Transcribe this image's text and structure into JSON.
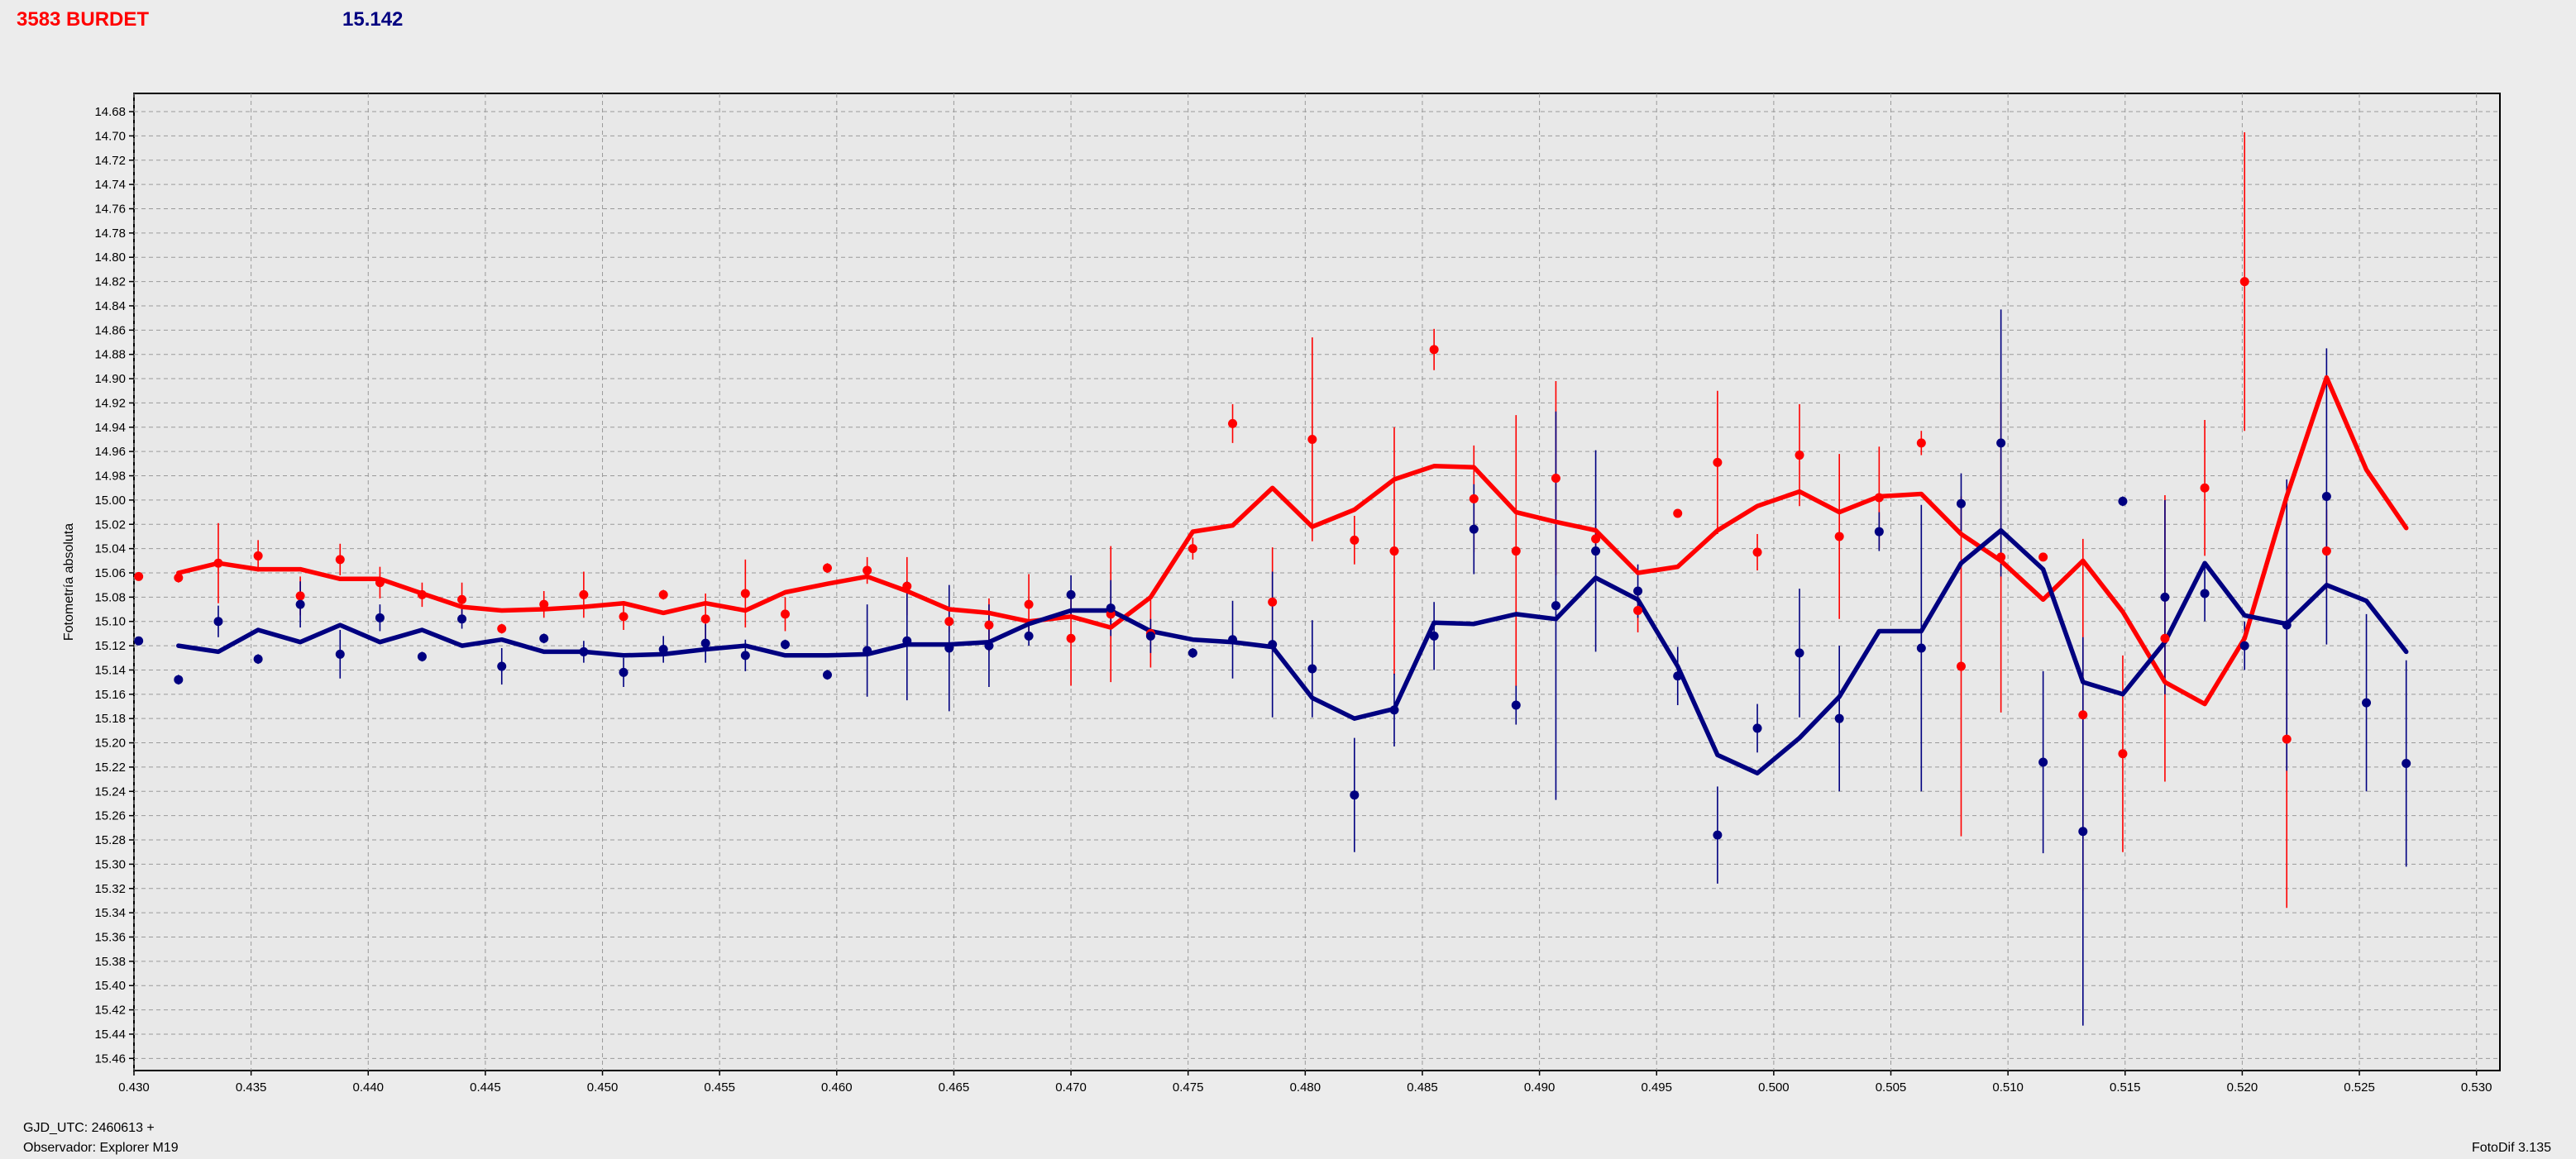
{
  "header": {
    "object_label": "3583 BURDET",
    "magnitude_label": "15.142"
  },
  "footer": {
    "gjd_label": "GJD_UTC: 2460613 +",
    "observer_label": "Observador: Explorer M19",
    "software_label": "FotoDif 3.135"
  },
  "colors": {
    "series_red": "#ff0000",
    "series_blue": "#000080",
    "plot_background": "#e8e8e8",
    "grid": "#9a9a9a"
  },
  "chart_data": {
    "type": "scatter",
    "title": "",
    "xlabel": "",
    "ylabel": "Fotometría absoluta",
    "xlim": [
      0.43,
      0.531
    ],
    "ylim": [
      14.665,
      15.47
    ],
    "y_inverted": true,
    "grid": true,
    "x_ticks": [
      "0.430",
      "0.435",
      "0.440",
      "0.445",
      "0.450",
      "0.455",
      "0.460",
      "0.465",
      "0.470",
      "0.475",
      "0.480",
      "0.485",
      "0.490",
      "0.495",
      "0.500",
      "0.505",
      "0.510",
      "0.515",
      "0.520",
      "0.525",
      "0.530"
    ],
    "y_ticks": [
      "14.68",
      "14.70",
      "14.72",
      "14.74",
      "14.76",
      "14.78",
      "14.80",
      "14.82",
      "14.84",
      "14.86",
      "14.88",
      "14.90",
      "14.92",
      "14.94",
      "14.96",
      "14.98",
      "15.00",
      "15.02",
      "15.04",
      "15.06",
      "15.08",
      "15.10",
      "15.12",
      "15.14",
      "15.16",
      "15.18",
      "15.20",
      "15.22",
      "15.24",
      "15.26",
      "15.28",
      "15.30",
      "15.32",
      "15.34",
      "15.36",
      "15.38",
      "15.40",
      "15.42",
      "15.44",
      "15.46"
    ],
    "series": [
      {
        "color": "#ff0000",
        "points": [
          [
            0.4302,
            15.063,
            0.0
          ],
          [
            0.4319,
            15.064,
            0.004
          ],
          [
            0.4336,
            15.052,
            0.033
          ],
          [
            0.4353,
            15.046,
            0.013
          ],
          [
            0.4371,
            15.079,
            0.016
          ],
          [
            0.4388,
            15.049,
            0.013
          ],
          [
            0.4405,
            15.068,
            0.013
          ],
          [
            0.4423,
            15.078,
            0.01
          ],
          [
            0.444,
            15.082,
            0.014
          ],
          [
            0.4457,
            15.106,
            0.004
          ],
          [
            0.4475,
            15.086,
            0.011
          ],
          [
            0.4492,
            15.078,
            0.019
          ],
          [
            0.4509,
            15.096,
            0.011
          ],
          [
            0.4526,
            15.078,
            0.004
          ],
          [
            0.4544,
            15.098,
            0.021
          ],
          [
            0.4561,
            15.077,
            0.028
          ],
          [
            0.4578,
            15.094,
            0.014
          ],
          [
            0.4596,
            15.056,
            0.004
          ],
          [
            0.4613,
            15.058,
            0.011
          ],
          [
            0.463,
            15.071,
            0.024
          ],
          [
            0.4648,
            15.1,
            0.009
          ],
          [
            0.4665,
            15.103,
            0.022
          ],
          [
            0.4682,
            15.086,
            0.025
          ],
          [
            0.47,
            15.114,
            0.039
          ],
          [
            0.4717,
            15.094,
            0.056
          ],
          [
            0.4734,
            15.11,
            0.028
          ],
          [
            0.4752,
            15.04,
            0.009
          ],
          [
            0.4769,
            14.937,
            0.016
          ],
          [
            0.4786,
            15.084,
            0.045
          ],
          [
            0.4803,
            14.95,
            0.084
          ],
          [
            0.4821,
            15.033,
            0.02
          ],
          [
            0.4838,
            15.042,
            0.102
          ],
          [
            0.4855,
            14.876,
            0.017
          ],
          [
            0.4872,
            14.999,
            0.044
          ],
          [
            0.489,
            15.042,
            0.112
          ],
          [
            0.4907,
            14.982,
            0.08
          ],
          [
            0.4924,
            15.032,
            0.01
          ],
          [
            0.4942,
            15.091,
            0.018
          ],
          [
            0.4959,
            15.011,
            0.0
          ],
          [
            0.4976,
            14.969,
            0.059
          ],
          [
            0.4993,
            15.043,
            0.015
          ],
          [
            0.5011,
            14.963,
            0.042
          ],
          [
            0.5028,
            15.03,
            0.068
          ],
          [
            0.5045,
            14.998,
            0.042
          ],
          [
            0.5063,
            14.953,
            0.01
          ],
          [
            0.508,
            15.137,
            0.14
          ],
          [
            0.5097,
            15.047,
            0.128
          ],
          [
            0.5115,
            15.047,
            0.0
          ],
          [
            0.5132,
            15.177,
            0.145
          ],
          [
            0.5149,
            15.209,
            0.081
          ],
          [
            0.5167,
            15.114,
            0.118
          ],
          [
            0.5184,
            14.99,
            0.056
          ],
          [
            0.5201,
            14.82,
            0.123
          ],
          [
            0.5219,
            15.197,
            0.139
          ],
          [
            0.5236,
            15.042,
            0.034
          ]
        ]
      },
      {
        "color": "#000080",
        "points": [
          [
            0.4302,
            15.116,
            0.0
          ],
          [
            0.4319,
            15.148,
            0.004
          ],
          [
            0.4336,
            15.1,
            0.013
          ],
          [
            0.4353,
            15.131,
            0.004
          ],
          [
            0.4371,
            15.086,
            0.019
          ],
          [
            0.4388,
            15.127,
            0.02
          ],
          [
            0.4405,
            15.097,
            0.011
          ],
          [
            0.4423,
            15.129,
            0.004
          ],
          [
            0.444,
            15.098,
            0.008
          ],
          [
            0.4457,
            15.137,
            0.015
          ],
          [
            0.4475,
            15.114,
            0.004
          ],
          [
            0.4492,
            15.125,
            0.009
          ],
          [
            0.4509,
            15.142,
            0.012
          ],
          [
            0.4526,
            15.123,
            0.011
          ],
          [
            0.4544,
            15.118,
            0.016
          ],
          [
            0.4561,
            15.128,
            0.013
          ],
          [
            0.4578,
            15.119,
            0.004
          ],
          [
            0.4596,
            15.144,
            0.004
          ],
          [
            0.4613,
            15.124,
            0.038
          ],
          [
            0.463,
            15.116,
            0.049
          ],
          [
            0.4648,
            15.122,
            0.052
          ],
          [
            0.4665,
            15.12,
            0.034
          ],
          [
            0.4682,
            15.112,
            0.008
          ],
          [
            0.47,
            15.078,
            0.016
          ],
          [
            0.4717,
            15.089,
            0.023
          ],
          [
            0.4734,
            15.112,
            0.014
          ],
          [
            0.4752,
            15.126,
            0.004
          ],
          [
            0.4769,
            15.115,
            0.032
          ],
          [
            0.4786,
            15.119,
            0.06
          ],
          [
            0.4803,
            15.139,
            0.04
          ],
          [
            0.4821,
            15.243,
            0.047
          ],
          [
            0.4838,
            15.173,
            0.03
          ],
          [
            0.4855,
            15.112,
            0.028
          ],
          [
            0.4872,
            15.024,
            0.037
          ],
          [
            0.489,
            15.169,
            0.016
          ],
          [
            0.4907,
            15.087,
            0.16
          ],
          [
            0.4924,
            15.042,
            0.083
          ],
          [
            0.4942,
            15.075,
            0.022
          ],
          [
            0.4959,
            15.145,
            0.024
          ],
          [
            0.4976,
            15.276,
            0.04
          ],
          [
            0.4993,
            15.188,
            0.02
          ],
          [
            0.5011,
            15.126,
            0.053
          ],
          [
            0.5028,
            15.18,
            0.06
          ],
          [
            0.5045,
            15.026,
            0.016
          ],
          [
            0.5063,
            15.122,
            0.118
          ],
          [
            0.508,
            15.003,
            0.025
          ],
          [
            0.5097,
            14.953,
            0.11
          ],
          [
            0.5115,
            15.216,
            0.075
          ],
          [
            0.5132,
            15.273,
            0.16
          ],
          [
            0.5149,
            15.001,
            0.004
          ],
          [
            0.5167,
            15.08,
            0.08
          ],
          [
            0.5184,
            15.077,
            0.023
          ],
          [
            0.5201,
            15.12,
            0.02
          ],
          [
            0.5219,
            15.103,
            0.12
          ],
          [
            0.5236,
            14.997,
            0.122
          ],
          [
            0.5253,
            15.167,
            0.073
          ],
          [
            0.527,
            15.217,
            0.085
          ]
        ]
      }
    ],
    "trend_lines": [
      {
        "color": "#ff0000",
        "points": [
          [
            0.4319,
            15.06
          ],
          [
            0.4336,
            15.052
          ],
          [
            0.4353,
            15.057
          ],
          [
            0.4371,
            15.057
          ],
          [
            0.4388,
            15.065
          ],
          [
            0.4405,
            15.065
          ],
          [
            0.4423,
            15.077
          ],
          [
            0.444,
            15.088
          ],
          [
            0.4457,
            15.091
          ],
          [
            0.4475,
            15.09
          ],
          [
            0.4492,
            15.088
          ],
          [
            0.4509,
            15.085
          ],
          [
            0.4526,
            15.093
          ],
          [
            0.4544,
            15.085
          ],
          [
            0.4561,
            15.091
          ],
          [
            0.4578,
            15.076
          ],
          [
            0.4596,
            15.069
          ],
          [
            0.4613,
            15.063
          ],
          [
            0.463,
            15.075
          ],
          [
            0.4648,
            15.09
          ],
          [
            0.4665,
            15.093
          ],
          [
            0.4682,
            15.1
          ],
          [
            0.47,
            15.096
          ],
          [
            0.4717,
            15.105
          ],
          [
            0.4734,
            15.08
          ],
          [
            0.4752,
            15.026
          ],
          [
            0.4769,
            15.021
          ],
          [
            0.4786,
            14.99
          ],
          [
            0.4803,
            15.022
          ],
          [
            0.4821,
            15.008
          ],
          [
            0.4838,
            14.983
          ],
          [
            0.4855,
            14.972
          ],
          [
            0.4872,
            14.973
          ],
          [
            0.489,
            15.01
          ],
          [
            0.4907,
            15.018
          ],
          [
            0.4924,
            15.025
          ],
          [
            0.4942,
            15.06
          ],
          [
            0.4959,
            15.055
          ],
          [
            0.4976,
            15.025
          ],
          [
            0.4993,
            15.005
          ],
          [
            0.5011,
            14.993
          ],
          [
            0.5028,
            15.01
          ],
          [
            0.5045,
            14.997
          ],
          [
            0.5063,
            14.995
          ],
          [
            0.508,
            15.028
          ],
          [
            0.5097,
            15.05
          ],
          [
            0.5115,
            15.082
          ],
          [
            0.5132,
            15.05
          ],
          [
            0.5149,
            15.092
          ],
          [
            0.5167,
            15.15
          ],
          [
            0.5184,
            15.168
          ],
          [
            0.5201,
            15.114
          ],
          [
            0.5219,
            14.997
          ],
          [
            0.5236,
            14.899
          ],
          [
            0.5253,
            14.975
          ],
          [
            0.527,
            15.023
          ]
        ]
      },
      {
        "color": "#000080",
        "points": [
          [
            0.4319,
            15.12
          ],
          [
            0.4336,
            15.125
          ],
          [
            0.4353,
            15.107
          ],
          [
            0.4371,
            15.117
          ],
          [
            0.4388,
            15.103
          ],
          [
            0.4405,
            15.117
          ],
          [
            0.4423,
            15.107
          ],
          [
            0.444,
            15.12
          ],
          [
            0.4457,
            15.115
          ],
          [
            0.4475,
            15.125
          ],
          [
            0.4492,
            15.125
          ],
          [
            0.4509,
            15.128
          ],
          [
            0.4526,
            15.127
          ],
          [
            0.4544,
            15.123
          ],
          [
            0.4561,
            15.12
          ],
          [
            0.4578,
            15.128
          ],
          [
            0.4596,
            15.128
          ],
          [
            0.4613,
            15.127
          ],
          [
            0.463,
            15.119
          ],
          [
            0.4648,
            15.119
          ],
          [
            0.4665,
            15.117
          ],
          [
            0.4682,
            15.102
          ],
          [
            0.47,
            15.091
          ],
          [
            0.4717,
            15.091
          ],
          [
            0.4734,
            15.108
          ],
          [
            0.4752,
            15.115
          ],
          [
            0.4769,
            15.117
          ],
          [
            0.4786,
            15.121
          ],
          [
            0.4803,
            15.163
          ],
          [
            0.4821,
            15.18
          ],
          [
            0.4838,
            15.172
          ],
          [
            0.4855,
            15.101
          ],
          [
            0.4872,
            15.102
          ],
          [
            0.489,
            15.094
          ],
          [
            0.4907,
            15.098
          ],
          [
            0.4924,
            15.064
          ],
          [
            0.4942,
            15.082
          ],
          [
            0.4959,
            15.137
          ],
          [
            0.4976,
            15.21
          ],
          [
            0.4993,
            15.225
          ],
          [
            0.5011,
            15.196
          ],
          [
            0.5028,
            15.162
          ],
          [
            0.5045,
            15.108
          ],
          [
            0.5063,
            15.108
          ],
          [
            0.508,
            15.052
          ],
          [
            0.5097,
            15.025
          ],
          [
            0.5115,
            15.057
          ],
          [
            0.5132,
            15.15
          ],
          [
            0.5149,
            15.16
          ],
          [
            0.5167,
            15.117
          ],
          [
            0.5184,
            15.052
          ],
          [
            0.5201,
            15.095
          ],
          [
            0.5219,
            15.102
          ],
          [
            0.5236,
            15.07
          ],
          [
            0.5253,
            15.083
          ],
          [
            0.527,
            15.125
          ]
        ]
      }
    ]
  }
}
